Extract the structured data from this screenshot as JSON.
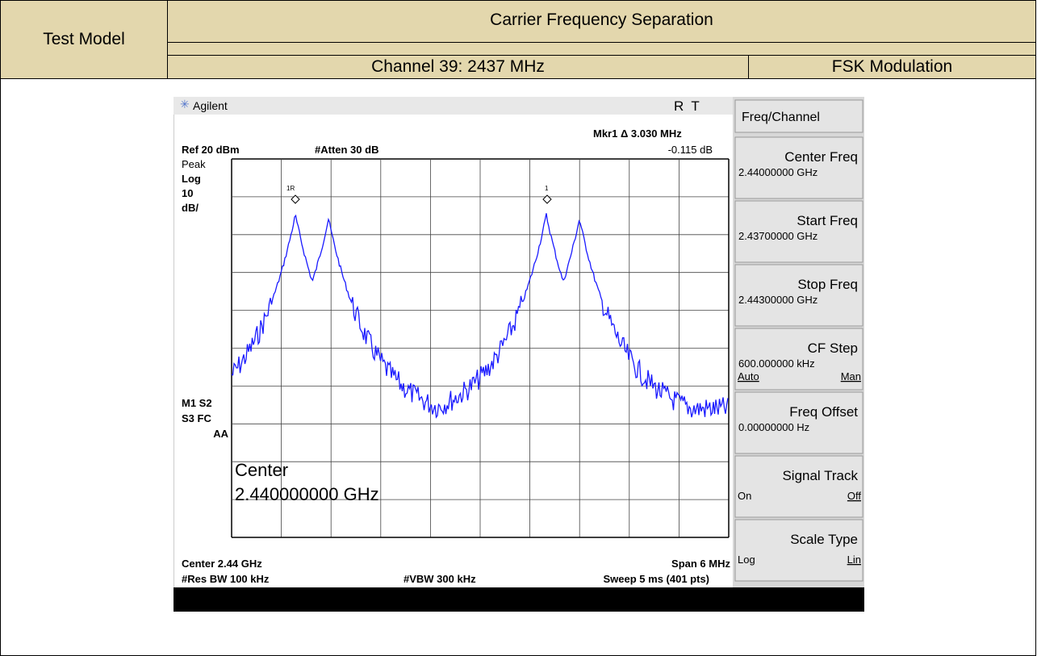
{
  "header": {
    "label_cell": "Test Model",
    "title": "Carrier Frequency Separation",
    "channel": "Channel 39: 2437 MHz",
    "modulation": "FSK Modulation"
  },
  "analyzer": {
    "brand": "Agilent",
    "status": "R  T",
    "marker": "Mkr1 Δ  3.030 MHz",
    "marker_level": "-0.115 dB",
    "ref": "Ref 20 dBm",
    "atten": "#Atten 30 dB",
    "left_labels": [
      "Peak",
      "Log",
      "10",
      "dB/"
    ],
    "status_labels": [
      "M1  S2",
      "S3  FC",
      "AA"
    ],
    "marker_ref": "1R",
    "marker_delta": "1",
    "center_annotation": [
      "Center",
      "2.440000000 GHz"
    ],
    "footer": {
      "center": "Center 2.44 GHz",
      "span": "Span 6 MHz",
      "rbw": "#Res BW 100 kHz",
      "vbw": "#VBW 300 kHz",
      "sweep": "Sweep 5 ms (401 pts)"
    }
  },
  "softkeys": {
    "menu": "Freq/Channel",
    "keys": [
      {
        "title": "Center Freq",
        "value": "2.44000000 GHz"
      },
      {
        "title": "Start Freq",
        "value": "2.43700000 GHz"
      },
      {
        "title": "Stop Freq",
        "value": "2.44300000 GHz"
      },
      {
        "title": "CF Step",
        "value": "600.000000 kHz",
        "left": "Auto",
        "right": "Man"
      },
      {
        "title": "Freq Offset",
        "value": "0.00000000  Hz"
      },
      {
        "title": "Signal Track",
        "left": "On",
        "right": "Off"
      },
      {
        "title": "Scale Type",
        "left": "Log",
        "right": "Lin"
      }
    ]
  }
}
